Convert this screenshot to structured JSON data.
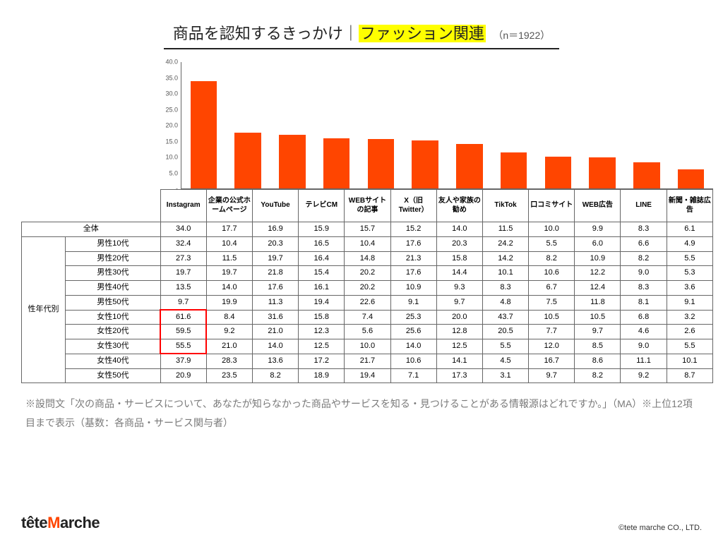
{
  "title": {
    "prefix": "商品を認知するきっかけ｜",
    "highlight": "ファッション関連",
    "n_label": "（n＝1922）"
  },
  "chart": {
    "type": "bar",
    "ylim": [
      0,
      40
    ],
    "ytick_step": 5,
    "yticks": [
      "-",
      "5.0",
      "10.0",
      "15.0",
      "20.0",
      "25.0",
      "30.0",
      "35.0",
      "40.0"
    ],
    "bar_color": "#ff4500",
    "axis_color": "#666666",
    "categories": [
      "Instagram",
      "企業の公式ホームページ",
      "YouTube",
      "テレビCM",
      "WEBサイトの記事",
      "X（旧Twitter）",
      "友人や家族の勧め",
      "TikTok",
      "口コミサイト",
      "WEB広告",
      "LINE",
      "新聞・雑誌広告"
    ],
    "values": [
      34.0,
      17.7,
      16.9,
      15.9,
      15.7,
      15.2,
      14.0,
      11.5,
      10.0,
      9.9,
      8.3,
      6.1
    ]
  },
  "table": {
    "total_label": "全体",
    "group_label": "性年代別",
    "row_labels": [
      "男性10代",
      "男性20代",
      "男性30代",
      "男性40代",
      "男性50代",
      "女性10代",
      "女性20代",
      "女性30代",
      "女性40代",
      "女性50代"
    ],
    "total_row": [
      "34.0",
      "17.7",
      "16.9",
      "15.9",
      "15.7",
      "15.2",
      "14.0",
      "11.5",
      "10.0",
      "9.9",
      "8.3",
      "6.1"
    ],
    "rows": [
      [
        "32.4",
        "10.4",
        "20.3",
        "16.5",
        "10.4",
        "17.6",
        "20.3",
        "24.2",
        "5.5",
        "6.0",
        "6.6",
        "4.9"
      ],
      [
        "27.3",
        "11.5",
        "19.7",
        "16.4",
        "14.8",
        "21.3",
        "15.8",
        "14.2",
        "8.2",
        "10.9",
        "8.2",
        "5.5"
      ],
      [
        "19.7",
        "19.7",
        "21.8",
        "15.4",
        "20.2",
        "17.6",
        "14.4",
        "10.1",
        "10.6",
        "12.2",
        "9.0",
        "5.3"
      ],
      [
        "13.5",
        "14.0",
        "17.6",
        "16.1",
        "20.2",
        "10.9",
        "9.3",
        "8.3",
        "6.7",
        "12.4",
        "8.3",
        "3.6"
      ],
      [
        "9.7",
        "19.9",
        "11.3",
        "19.4",
        "22.6",
        "9.1",
        "9.7",
        "4.8",
        "7.5",
        "11.8",
        "8.1",
        "9.1"
      ],
      [
        "61.6",
        "8.4",
        "31.6",
        "15.8",
        "7.4",
        "25.3",
        "20.0",
        "43.7",
        "10.5",
        "10.5",
        "6.8",
        "3.2"
      ],
      [
        "59.5",
        "9.2",
        "21.0",
        "12.3",
        "5.6",
        "25.6",
        "12.8",
        "20.5",
        "7.7",
        "9.7",
        "4.6",
        "2.6"
      ],
      [
        "55.5",
        "21.0",
        "14.0",
        "12.5",
        "10.0",
        "14.0",
        "12.5",
        "5.5",
        "12.0",
        "8.5",
        "9.0",
        "5.5"
      ],
      [
        "37.9",
        "28.3",
        "13.6",
        "17.2",
        "21.7",
        "10.6",
        "14.1",
        "4.5",
        "16.7",
        "8.6",
        "11.1",
        "10.1"
      ],
      [
        "20.9",
        "23.5",
        "8.2",
        "18.9",
        "19.4",
        "7.1",
        "17.3",
        "3.1",
        "9.7",
        "8.2",
        "9.2",
        "8.7"
      ]
    ],
    "highlight": {
      "col": 0,
      "row_start": 5,
      "row_end": 7,
      "color": "#ff0000"
    }
  },
  "footnote": "※設問文「次の商品・サービスについて、あなたが知らなかった商品やサービスを知る・見つけることがある情報源はどれですか。」（MA）※上位12項目まで表示（基数：各商品・サービス関与者）",
  "footer": {
    "logo_pre": "tête",
    "logo_flame": "M",
    "logo_post": "arche",
    "copyright": "©tete marche CO., LTD."
  }
}
